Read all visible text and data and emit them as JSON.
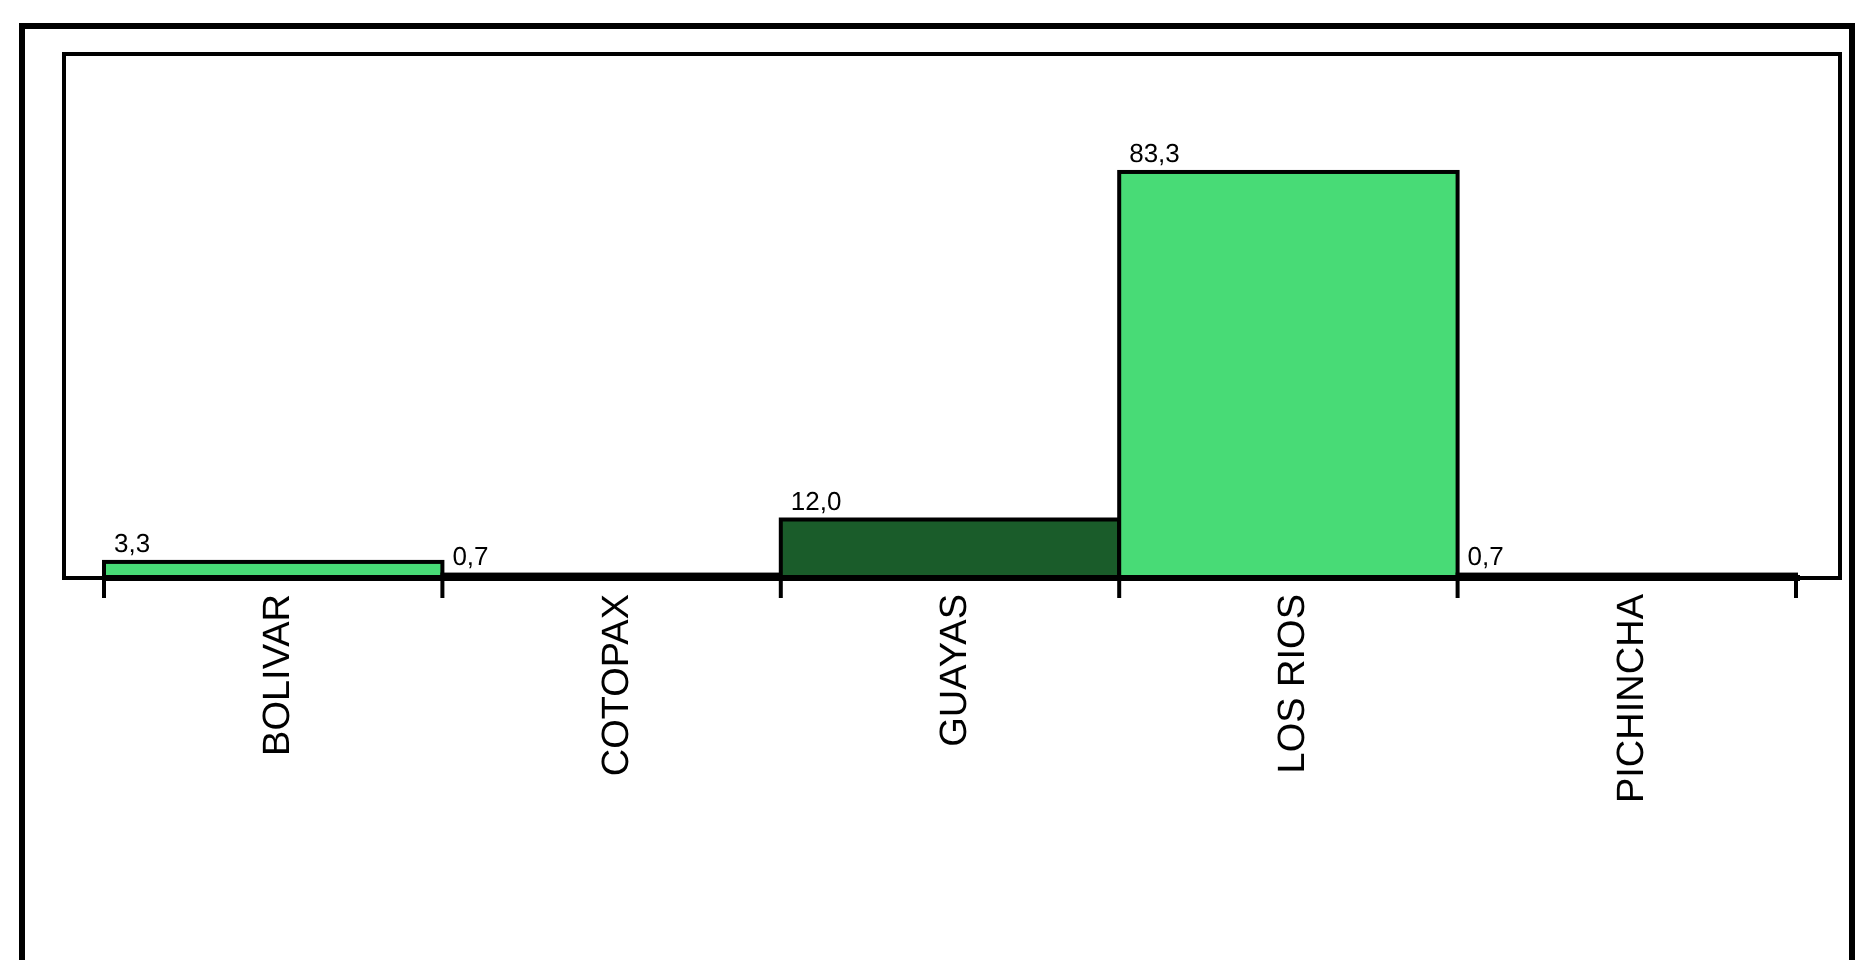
{
  "chart_data": {
    "type": "bar",
    "categories": [
      "BOLIVAR",
      "COTOPAX",
      "GUAYAS",
      "LOS RIOS",
      "PICHINCHA"
    ],
    "values": [
      3.3,
      0.7,
      12.0,
      83.3,
      0.7
    ],
    "value_labels": [
      "3,3",
      "0,7",
      "12,0",
      "83,3",
      "0,7"
    ],
    "colors": [
      "#48db76",
      "#1a5c2a",
      "#1a5c2a",
      "#48db76",
      "#1a5c2a"
    ],
    "ylim": [
      0,
      107.5
    ],
    "tick_labels": "x"
  }
}
